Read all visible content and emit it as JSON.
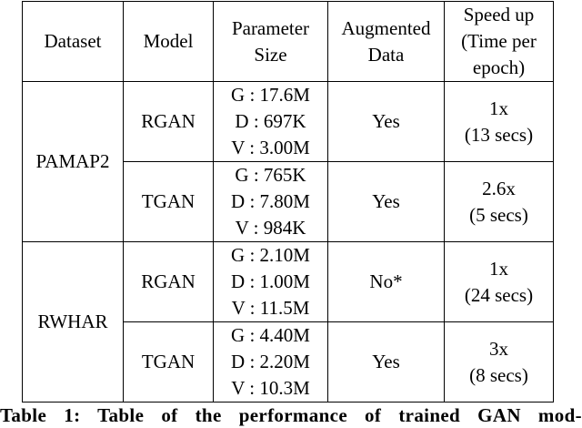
{
  "headers": {
    "dataset": "Dataset",
    "model": "Model",
    "param_line1": "Parameter",
    "param_line2": "Size",
    "aug_line1": "Augmented",
    "aug_line2": "Data",
    "speed_line1": "Speed up",
    "speed_line2": "(Time per",
    "speed_line3": "epoch)"
  },
  "datasets": [
    {
      "name": "PAMAP2",
      "models": [
        {
          "model": "RGAN",
          "g": "G : 17.6M",
          "d": "D : 697K",
          "v": "V : 3.00M",
          "augmented": "Yes",
          "speedup": "1x",
          "time": "(13 secs)"
        },
        {
          "model": "TGAN",
          "g": "G : 765K",
          "d": "D : 7.80M",
          "v": "V : 984K",
          "augmented": "Yes",
          "speedup": "2.6x",
          "time": "(5 secs)"
        }
      ]
    },
    {
      "name": "RWHAR",
      "models": [
        {
          "model": "RGAN",
          "g": "G : 2.10M",
          "d": "D : 1.00M",
          "v": "V : 11.5M",
          "augmented": "No*",
          "speedup": "1x",
          "time": "(24 secs)"
        },
        {
          "model": "TGAN",
          "g": "G : 4.40M",
          "d": "D : 2.20M",
          "v": "V : 10.3M",
          "augmented": "Yes",
          "speedup": "3x",
          "time": "(8 secs)"
        }
      ]
    }
  ],
  "caption": "Table 1: Table of the performance of trained GAN mod-"
}
